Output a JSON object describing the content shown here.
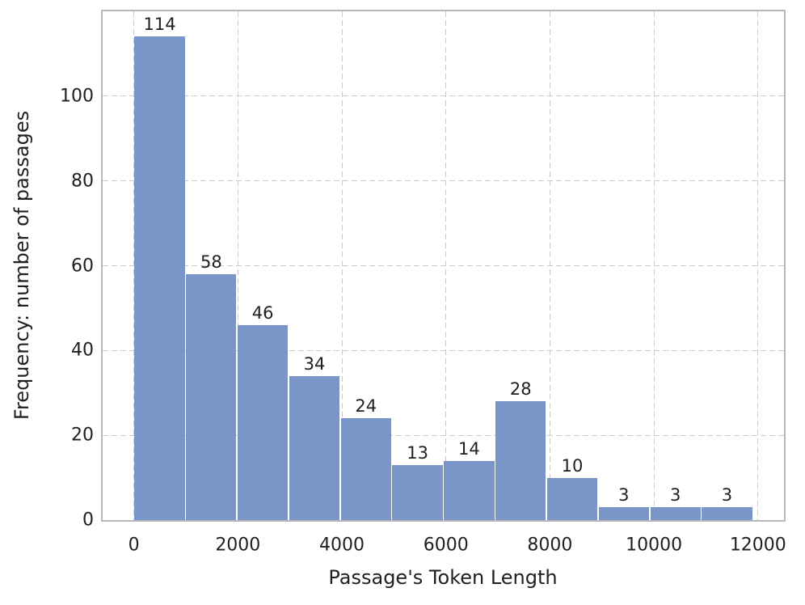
{
  "chart_data": {
    "type": "bar",
    "subtype": "histogram",
    "title": "",
    "xlabel": "Passage's Token Length",
    "ylabel": "Frequency: number of passages",
    "bin_start": 0,
    "bin_width": 991.67,
    "bin_edges": [
      0,
      991.67,
      1983.33,
      2975,
      3966.67,
      4958.33,
      5950,
      6941.67,
      7933.33,
      8925,
      9916.67,
      10908.33,
      11900
    ],
    "counts": [
      114,
      58,
      46,
      34,
      24,
      13,
      14,
      28,
      10,
      3,
      3,
      3
    ],
    "bar_labels": [
      "114",
      "58",
      "46",
      "34",
      "24",
      "13",
      "14",
      "28",
      "10",
      "3",
      "3",
      "3"
    ],
    "x_ticks": [
      0,
      2000,
      4000,
      6000,
      8000,
      10000,
      12000
    ],
    "x_tick_labels": [
      "0",
      "2000",
      "4000",
      "6000",
      "8000",
      "10000",
      "12000"
    ],
    "y_ticks": [
      0,
      20,
      40,
      60,
      80,
      100
    ],
    "y_tick_labels": [
      "0",
      "20",
      "40",
      "60",
      "80",
      "100"
    ],
    "xlim": [
      -600,
      12500
    ],
    "ylim": [
      0,
      120
    ],
    "grid": "dashed, both axes, at tick positions",
    "legend": "none",
    "colors": {
      "bar": "#7a95c7",
      "grid": "#cbcbcb",
      "spine": "#b8b8b8",
      "text": "#1f1f1f",
      "background": "#ffffff"
    }
  }
}
